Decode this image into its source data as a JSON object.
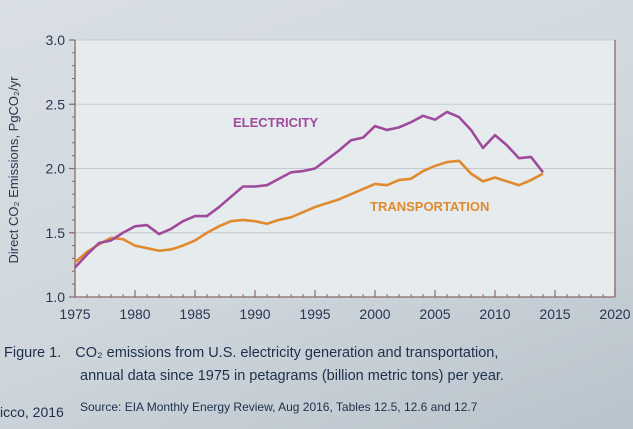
{
  "chart_data": {
    "type": "line",
    "title": "",
    "xlabel": "",
    "ylabel": "Direct CO₂ Emissions, PgCO₂/yr",
    "xlim": [
      1975,
      2020
    ],
    "ylim": [
      1.0,
      3.0
    ],
    "x_ticks": [
      "1975",
      "1980",
      "1985",
      "1990",
      "1995",
      "2000",
      "2005",
      "2010",
      "2015",
      "2020"
    ],
    "y_ticks": [
      "1.0",
      "1.5",
      "2.0",
      "2.5",
      "3.0"
    ],
    "grid": "horizontal",
    "x": [
      1975,
      1976,
      1977,
      1978,
      1979,
      1980,
      1981,
      1982,
      1983,
      1984,
      1985,
      1986,
      1987,
      1988,
      1989,
      1990,
      1991,
      1992,
      1993,
      1994,
      1995,
      1996,
      1997,
      1998,
      1999,
      2000,
      2001,
      2002,
      2003,
      2004,
      2005,
      2006,
      2007,
      2008,
      2009,
      2010,
      2011,
      2012,
      2013,
      2014
    ],
    "series": [
      {
        "name": "ELECTRICITY",
        "color": "#a04a9c",
        "values": [
          1.23,
          1.33,
          1.42,
          1.44,
          1.5,
          1.55,
          1.56,
          1.49,
          1.53,
          1.59,
          1.63,
          1.63,
          1.7,
          1.78,
          1.86,
          1.86,
          1.87,
          1.92,
          1.97,
          1.98,
          2.0,
          2.07,
          2.14,
          2.22,
          2.24,
          2.33,
          2.3,
          2.32,
          2.36,
          2.41,
          2.38,
          2.44,
          2.4,
          2.3,
          2.16,
          2.26,
          2.18,
          2.08,
          2.09,
          1.97
        ]
      },
      {
        "name": "TRANSPORTATION",
        "color": "#e08a2e",
        "values": [
          1.27,
          1.35,
          1.41,
          1.46,
          1.45,
          1.4,
          1.38,
          1.36,
          1.37,
          1.4,
          1.44,
          1.5,
          1.55,
          1.59,
          1.6,
          1.59,
          1.57,
          1.6,
          1.62,
          1.66,
          1.7,
          1.73,
          1.76,
          1.8,
          1.84,
          1.88,
          1.87,
          1.91,
          1.92,
          1.98,
          2.02,
          2.05,
          2.06,
          1.96,
          1.9,
          1.93,
          1.9,
          1.87,
          1.91,
          1.96
        ]
      }
    ]
  },
  "caption": {
    "figure_label": "Figure 1.",
    "line1": "CO₂ emissions from U.S. electricity generation and transportation,",
    "line2": "annual data since 1975 in petagrams (billion metric tons) per year.",
    "credit": "icco, 2016",
    "source": "Source: EIA Monthly Energy Review, Aug 2016, Tables 12.5, 12.6 and 12.7"
  }
}
